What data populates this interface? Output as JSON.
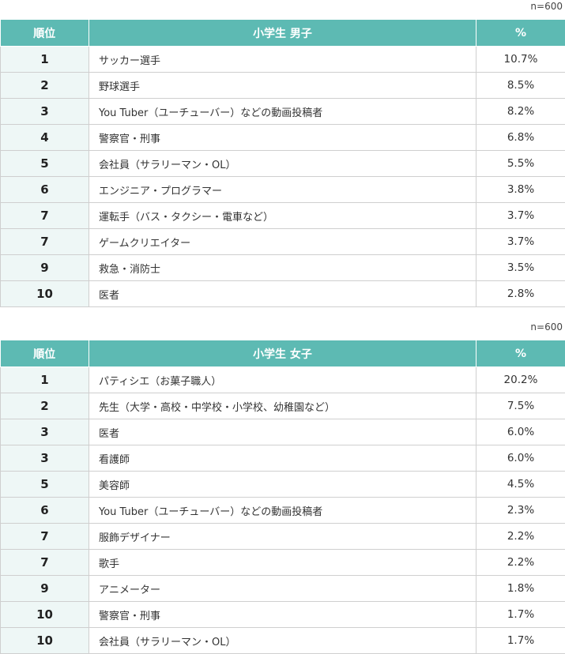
{
  "boys": {
    "n_label": "n=600",
    "headers": {
      "rank": "順位",
      "category": "小学生 男子",
      "pct": "%"
    },
    "rows": [
      {
        "rank": "1",
        "job": "サッカー選手",
        "pct": "10.7%"
      },
      {
        "rank": "2",
        "job": "野球選手",
        "pct": "8.5%"
      },
      {
        "rank": "3",
        "job": "You Tuber（ユーチューバー）などの動画投稿者",
        "pct": "8.2%"
      },
      {
        "rank": "4",
        "job": "警察官・刑事",
        "pct": "6.8%"
      },
      {
        "rank": "5",
        "job": "会社員（サラリーマン・OL）",
        "pct": "5.5%"
      },
      {
        "rank": "6",
        "job": "エンジニア・プログラマー",
        "pct": "3.8%"
      },
      {
        "rank": "7",
        "job": "運転手（バス・タクシー・電車など）",
        "pct": "3.7%"
      },
      {
        "rank": "7",
        "job": "ゲームクリエイター",
        "pct": "3.7%"
      },
      {
        "rank": "9",
        "job": "救急・消防士",
        "pct": "3.5%"
      },
      {
        "rank": "10",
        "job": "医者",
        "pct": "2.8%"
      }
    ]
  },
  "girls": {
    "n_label": "n=600",
    "headers": {
      "rank": "順位",
      "category": "小学生 女子",
      "pct": "%"
    },
    "rows": [
      {
        "rank": "1",
        "job": "パティシエ（お菓子職人）",
        "pct": "20.2%"
      },
      {
        "rank": "2",
        "job": "先生（大学・高校・中学校・小学校、幼稚園など）",
        "pct": "7.5%"
      },
      {
        "rank": "3",
        "job": "医者",
        "pct": "6.0%"
      },
      {
        "rank": "3",
        "job": "看護師",
        "pct": "6.0%"
      },
      {
        "rank": "5",
        "job": "美容師",
        "pct": "4.5%"
      },
      {
        "rank": "6",
        "job": "You Tuber（ユーチューバー）などの動画投稿者",
        "pct": "2.3%"
      },
      {
        "rank": "7",
        "job": "服飾デザイナー",
        "pct": "2.2%"
      },
      {
        "rank": "7",
        "job": "歌手",
        "pct": "2.2%"
      },
      {
        "rank": "9",
        "job": "アニメーター",
        "pct": "1.8%"
      },
      {
        "rank": "10",
        "job": "警察官・刑事",
        "pct": "1.7%"
      },
      {
        "rank": "10",
        "job": "会社員（サラリーマン・OL）",
        "pct": "1.7%"
      }
    ]
  },
  "colors": {
    "header_bg": "#5dbab3",
    "rank_bg": "#eef7f6",
    "border": "#cfcfcf"
  }
}
